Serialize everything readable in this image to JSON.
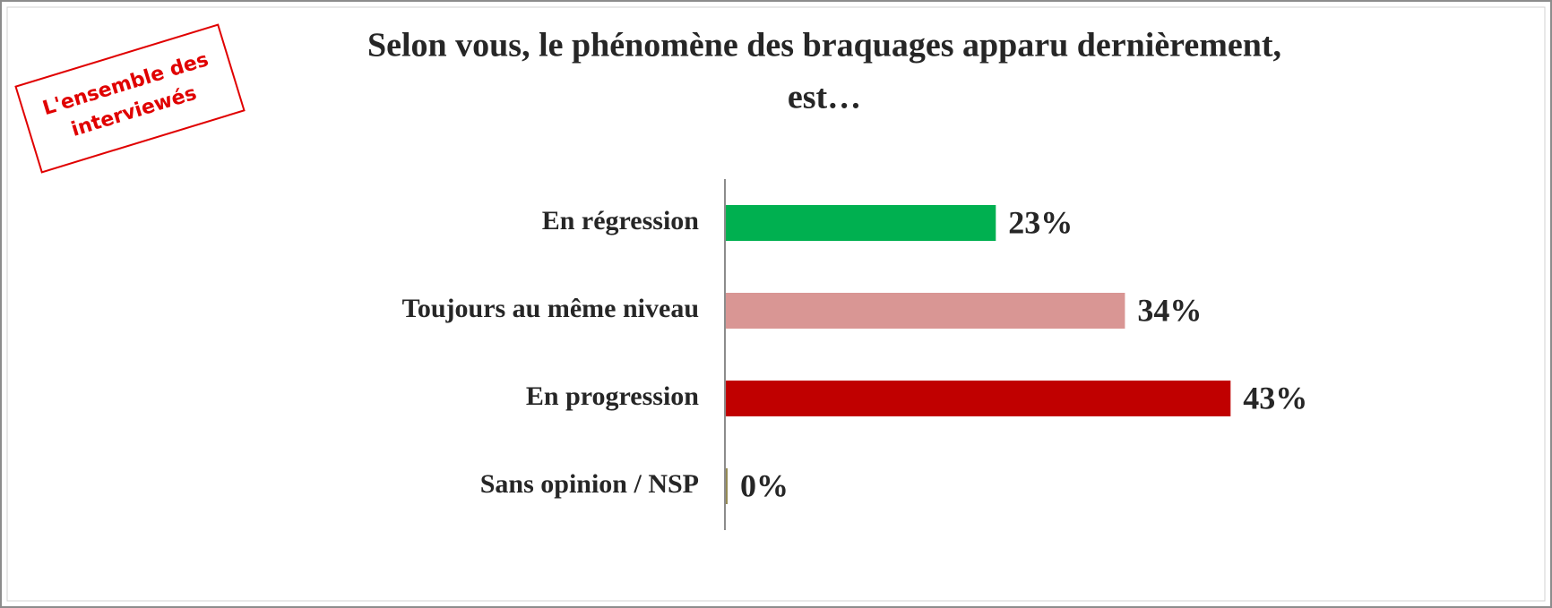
{
  "chart_data": {
    "type": "bar",
    "orientation": "horizontal",
    "title_lines": [
      "Selon vous, le phénomène des braquages apparu dernièrement,",
      "est…"
    ],
    "annotation_lines": [
      "L'ensemble des",
      "interviewés"
    ],
    "categories": [
      "En régression",
      "Toujours au même niveau",
      "En progression",
      "Sans opinion / NSP"
    ],
    "values": [
      23,
      34,
      43,
      0
    ],
    "value_labels": [
      "23%",
      "34%",
      "43%",
      "0%"
    ],
    "colors": [
      "#00b050",
      "#d99694",
      "#c00000",
      "#948a54"
    ]
  }
}
